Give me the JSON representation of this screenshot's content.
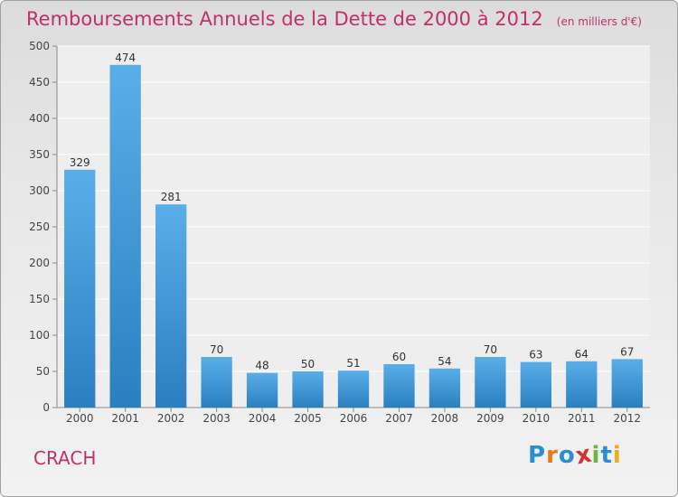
{
  "header": {
    "title": "Remboursements Annuels de la Dette de 2000 à 2012",
    "subtitle": "(en milliers d'€)"
  },
  "footer": {
    "city": "CRACH",
    "logo_text": "Proxiti"
  },
  "colors": {
    "title": "#c0306a",
    "bar_top": "#5aaee8",
    "bar_bottom": "#2a7fc0",
    "logo": [
      "#2a8ed0",
      "#e87a1a",
      "#2a8ed0",
      "#d83030",
      "#6ab83a",
      "#2a8ed0",
      "#e8b01a"
    ]
  },
  "chart_data": {
    "type": "bar",
    "categories": [
      "2000",
      "2001",
      "2002",
      "2003",
      "2004",
      "2005",
      "2006",
      "2007",
      "2008",
      "2009",
      "2010",
      "2011",
      "2012"
    ],
    "values": [
      329,
      474,
      281,
      70,
      48,
      50,
      51,
      60,
      54,
      70,
      63,
      64,
      67
    ],
    "data_labels": [
      "329",
      "474",
      "281",
      "70",
      "48",
      "50",
      "51",
      "60",
      "54",
      "70",
      "63",
      "64",
      "67"
    ],
    "yticks": [
      "0",
      "50",
      "100",
      "150",
      "200",
      "250",
      "300",
      "350",
      "400",
      "450",
      "500"
    ],
    "ylim": [
      0,
      500
    ],
    "grid": true,
    "title": "Remboursements Annuels de la Dette de 2000 à 2012",
    "xlabel": "",
    "ylabel": ""
  }
}
